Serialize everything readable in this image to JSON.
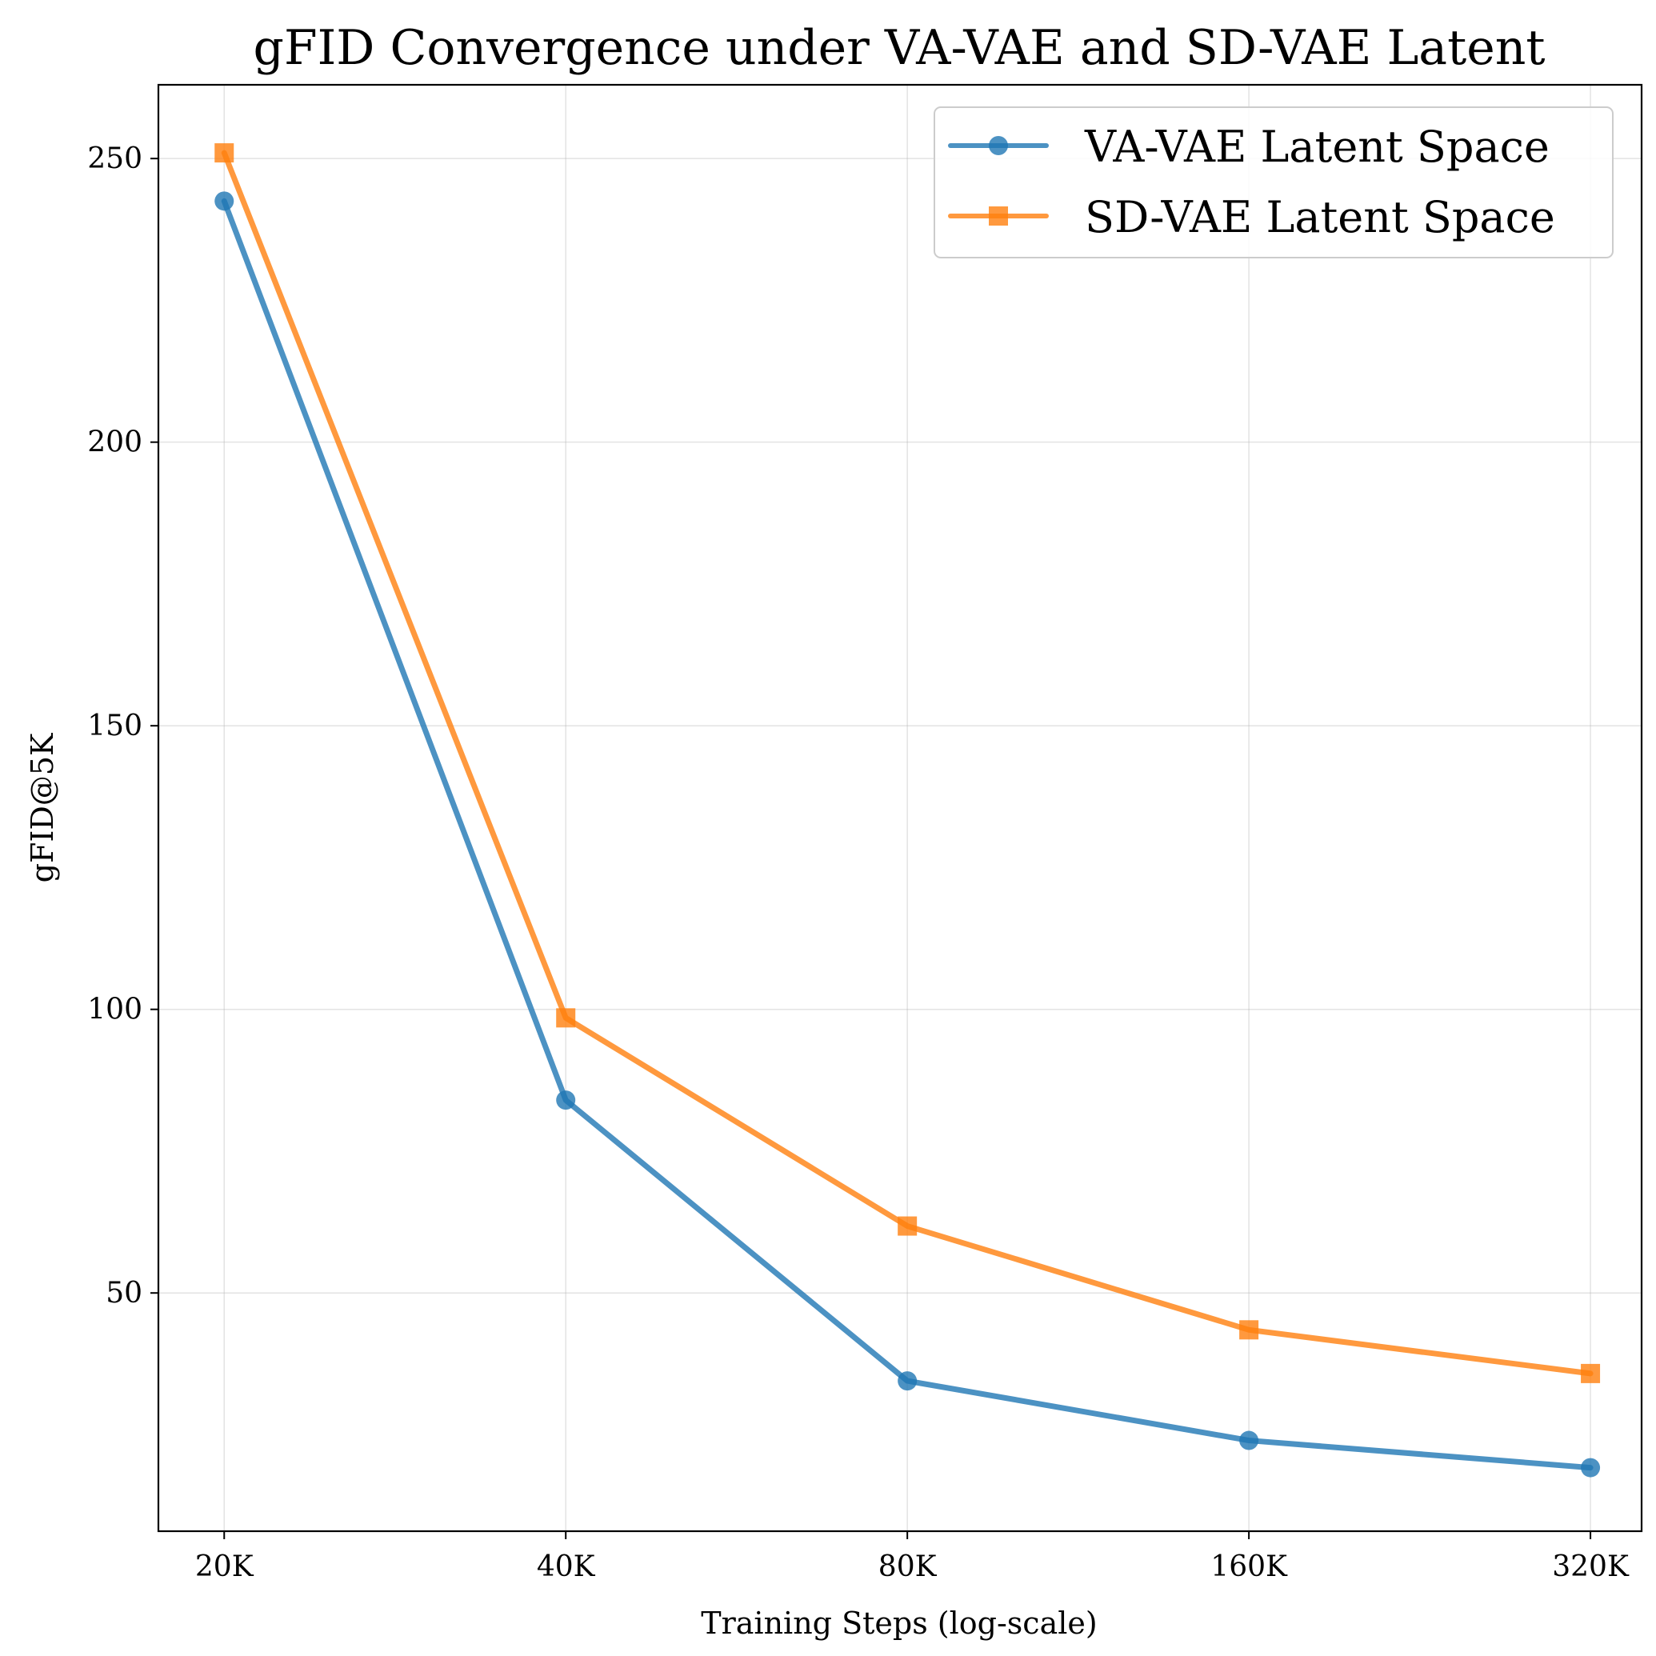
{
  "chart_data": {
    "type": "line",
    "title": "gFID Convergence under VA-VAE and SD-VAE Latent",
    "xlabel": "Training Steps (log-scale)",
    "ylabel": "gFID@5K",
    "x_scale": "log",
    "x": [
      20000,
      40000,
      80000,
      160000,
      320000
    ],
    "x_tick_labels": [
      "20K",
      "40K",
      "80K",
      "160K",
      "320K"
    ],
    "y_ticks": [
      50,
      100,
      150,
      200,
      250
    ],
    "xlim": [
      17500,
      355000
    ],
    "ylim": [
      8,
      263
    ],
    "grid": true,
    "legend_position": "top-right",
    "series": [
      {
        "name": "VA-VAE Latent Space",
        "color": "#1f77b4",
        "marker": "circle",
        "values": [
          242.5,
          84,
          34.5,
          24,
          19.2
        ]
      },
      {
        "name": "SD-VAE Latent Space",
        "color": "#ff7f0e",
        "marker": "square",
        "values": [
          251,
          98.5,
          61.8,
          43.5,
          35.8
        ]
      }
    ]
  }
}
